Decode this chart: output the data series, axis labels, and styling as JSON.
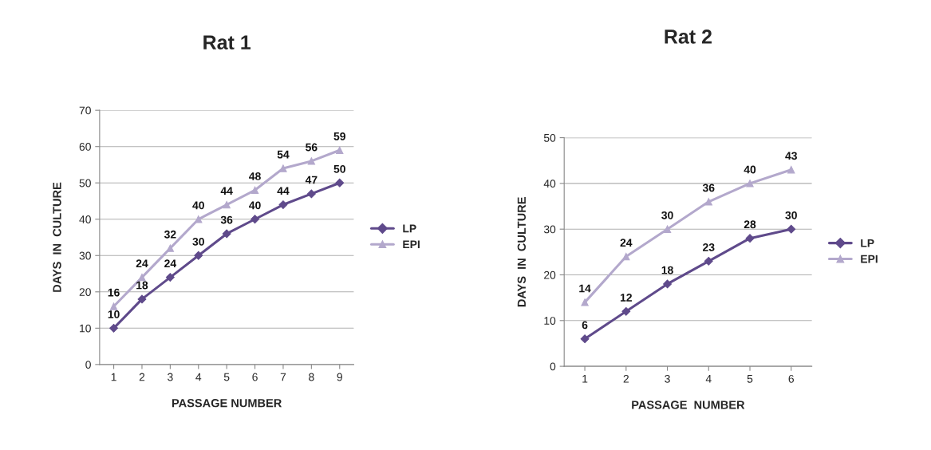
{
  "chart_data": [
    {
      "type": "line",
      "title": "Rat 1",
      "xlabel": "PASSAGE NUMBER",
      "ylabel": "DAYS  IN  CULTURE",
      "categories": [
        "1",
        "2",
        "3",
        "4",
        "5",
        "6",
        "7",
        "8",
        "9"
      ],
      "ylim": [
        0,
        70
      ],
      "yticks": [
        0,
        10,
        20,
        30,
        40,
        50,
        60,
        70
      ],
      "grid": "y",
      "legend": "right",
      "data_labels": true,
      "series": [
        {
          "name": "LP",
          "color": "#5f4a8b",
          "marker": "diamond",
          "values": [
            10,
            18,
            24,
            30,
            36,
            40,
            44,
            47,
            50
          ]
        },
        {
          "name": "EPI",
          "color": "#b3a8cc",
          "marker": "triangle",
          "values": [
            16,
            24,
            32,
            40,
            44,
            48,
            54,
            56,
            59
          ]
        }
      ]
    },
    {
      "type": "line",
      "title": "Rat 2",
      "xlabel": "PASSAGE  NUMBER",
      "ylabel": "DAYS  IN  CULTURE",
      "categories": [
        "1",
        "2",
        "3",
        "4",
        "5",
        "6"
      ],
      "ylim": [
        0,
        50
      ],
      "yticks": [
        0,
        10,
        20,
        30,
        40,
        50
      ],
      "grid": "y",
      "legend": "right",
      "data_labels": true,
      "series": [
        {
          "name": "LP",
          "color": "#5f4a8b",
          "marker": "diamond",
          "values": [
            6,
            12,
            18,
            23,
            28,
            30
          ]
        },
        {
          "name": "EPI",
          "color": "#b3a8cc",
          "marker": "triangle",
          "values": [
            14,
            24,
            30,
            36,
            40,
            43
          ]
        }
      ]
    }
  ]
}
